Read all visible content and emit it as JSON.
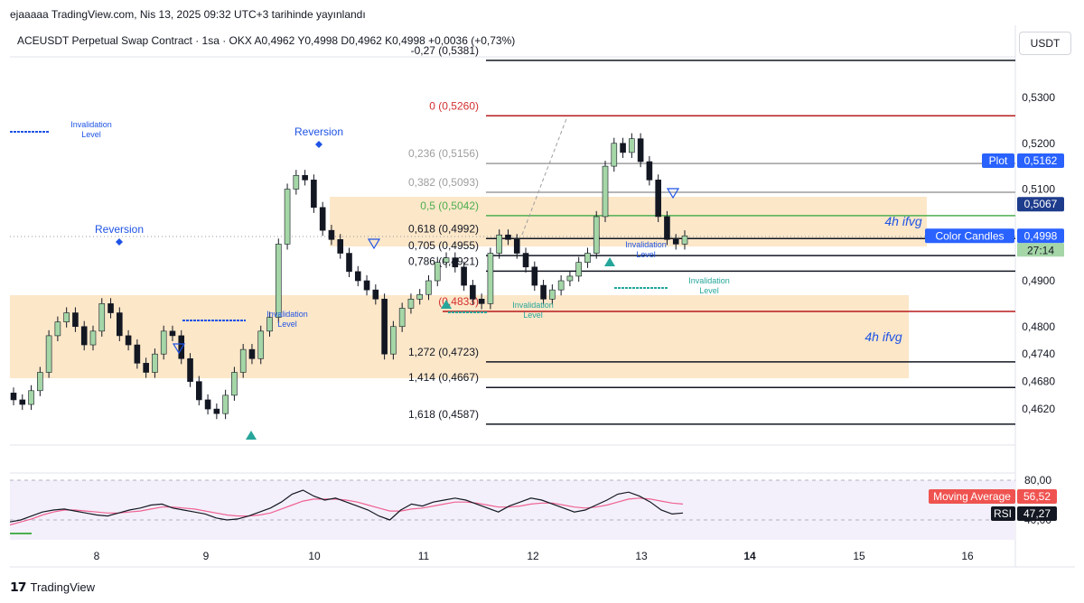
{
  "header": {
    "author_line": "ejaaaaa TradingView.com, Nis 13, 2025 09:32 UTC+3 tarihinde yayınlandı",
    "symbol_line": "ACEUSDT Perpetual Swap Contract · 1sa · OKX  A0,4962  Y0,4998  D0,4962  K0,4998  +0,0036 (+0,73%)",
    "currency_button": "USDT"
  },
  "footer": {
    "brand": "TradingView"
  },
  "colors": {
    "up": "#a5d6a7",
    "down": "#131722",
    "zone": "#fbe3c0",
    "fib_red": "#b71c1c",
    "fib_green": "#4caf50",
    "rsi": "#131722",
    "ma": "#f06292",
    "label_blue": "#1e53e5",
    "teal": "#26a69a"
  },
  "chart_data": [
    {
      "type": "candlestick",
      "title": "",
      "x_tick_labels": [
        "8",
        "9",
        "10",
        "11",
        "12",
        "13",
        "14",
        "15",
        "16"
      ],
      "y_tick_labels": [
        "0,5300",
        "0,5200",
        "0,5100",
        "0,4900",
        "0,4800",
        "0,4740",
        "0,4680",
        "0,4620"
      ],
      "candles_close_approx": [
        0.464,
        0.463,
        0.466,
        0.47,
        0.478,
        0.481,
        0.483,
        0.48,
        0.476,
        0.479,
        0.485,
        0.483,
        0.478,
        0.476,
        0.472,
        0.47,
        0.474,
        0.479,
        0.478,
        0.473,
        0.468,
        0.464,
        0.462,
        0.461,
        0.465,
        0.47,
        0.475,
        0.473,
        0.479,
        0.482,
        0.498,
        0.51,
        0.513,
        0.512,
        0.506,
        0.501,
        0.499,
        0.496,
        0.492,
        0.49,
        0.488,
        0.486,
        0.474,
        0.48,
        0.484,
        0.486,
        0.487,
        0.49,
        0.494,
        0.495,
        0.493,
        0.489,
        0.486,
        0.485,
        0.496,
        0.5,
        0.499,
        0.496,
        0.493,
        0.489,
        0.486,
        0.488,
        0.49,
        0.491,
        0.494,
        0.496,
        0.504,
        0.515,
        0.52,
        0.518,
        0.521,
        0.516,
        0.512,
        0.504,
        0.499,
        0.498,
        0.4998
      ],
      "fib_levels": [
        {
          "label": "-0,27 (0,5381)",
          "value": 0.5381
        },
        {
          "label": "0 (0,5260)",
          "value": 0.526
        },
        {
          "label": "0,236 (0,5156)",
          "value": 0.5156
        },
        {
          "label": "0,382 (0,5093)",
          "value": 0.5093
        },
        {
          "label": "0,5 (0,5042)",
          "value": 0.5042
        },
        {
          "label": "0,618 (0,4992)",
          "value": 0.4992
        },
        {
          "label": "0,705 (0,4955)",
          "value": 0.4955
        },
        {
          "label": "0,786 (0,4921)",
          "value": 0.4921
        },
        {
          "label": "(0,4833)",
          "value": 0.4833
        },
        {
          "label": "1,272 (0,4723)",
          "value": 0.4723
        },
        {
          "label": "1,414 (0,4667)",
          "value": 0.4667
        },
        {
          "label": "1,618 (0,4587)",
          "value": 0.4587
        }
      ],
      "zones": [
        {
          "label": "4h ifvg"
        },
        {
          "label": "4h ifvg"
        }
      ],
      "annotations": [
        "Reversion",
        "Reversion",
        "Invalidation Level",
        "Invalidation Level",
        "Invalidation Level",
        "Invalidation Level",
        "Invalidation Level"
      ],
      "price_labels": [
        {
          "name": "Plot",
          "value": "0,5162"
        },
        {
          "name": "",
          "value": "0,5067"
        },
        {
          "name": "Color Candles",
          "value": "0,4998"
        },
        {
          "name": "",
          "value": "27:14"
        }
      ]
    },
    {
      "type": "line",
      "title": "",
      "y_tick_labels": [
        "80,00",
        "40,00"
      ],
      "series": [
        {
          "name": "RSI",
          "last_value": "47,27",
          "values": [
            38,
            40,
            44,
            48,
            50,
            51,
            49,
            47,
            45,
            44,
            47,
            50,
            52,
            55,
            56,
            52,
            50,
            48,
            46,
            42,
            40,
            41,
            44,
            48,
            52,
            58,
            66,
            70,
            64,
            60,
            62,
            58,
            54,
            50,
            44,
            40,
            50,
            56,
            54,
            58,
            60,
            62,
            60,
            56,
            52,
            48,
            54,
            58,
            62,
            60,
            56,
            52,
            48,
            50,
            55,
            60,
            66,
            68,
            64,
            58,
            50,
            46,
            47
          ]
        },
        {
          "name": "Moving Average",
          "last_value": "56,52",
          "values": [
            35,
            38,
            41,
            45,
            48,
            50,
            50,
            49,
            48,
            47,
            47,
            48,
            49,
            51,
            53,
            53,
            52,
            51,
            49,
            47,
            45,
            44,
            44,
            45,
            47,
            51,
            55,
            59,
            61,
            61,
            61,
            60,
            58,
            55,
            52,
            49,
            49,
            51,
            52,
            54,
            56,
            58,
            58,
            57,
            55,
            53,
            53,
            54,
            56,
            57,
            57,
            55,
            53,
            52,
            53,
            55,
            58,
            61,
            62,
            61,
            59,
            57,
            56
          ]
        }
      ]
    }
  ]
}
